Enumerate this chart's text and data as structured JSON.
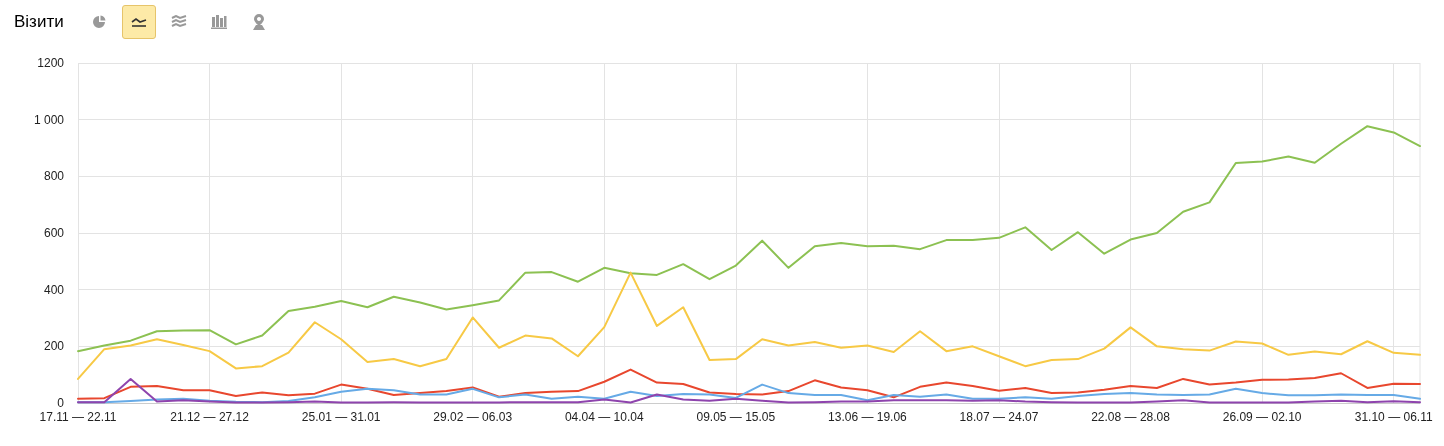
{
  "chart_data": {
    "type": "line",
    "title": "Візити",
    "categories": [
      "17.11 — 22.11",
      null,
      null,
      null,
      null,
      "21.12 — 27.12",
      null,
      null,
      null,
      null,
      "25.01 — 31.01",
      null,
      null,
      null,
      null,
      "29.02 — 06.03",
      null,
      null,
      null,
      null,
      "04.04 — 10.04",
      null,
      null,
      null,
      null,
      "09.05 — 15.05",
      null,
      null,
      null,
      null,
      "13.06 — 19.06",
      null,
      null,
      null,
      null,
      "18.07 — 24.07",
      null,
      null,
      null,
      null,
      "22.08 — 28.08",
      null,
      null,
      null,
      null,
      "26.09 — 02.10",
      null,
      null,
      null,
      null,
      "31.10 — 06.11",
      null
    ],
    "series": [
      {
        "color": "#8cc152",
        "values": [
          183,
          203,
          220,
          253,
          256,
          257,
          207,
          238,
          325,
          340,
          360,
          338,
          375,
          355,
          330,
          345,
          362,
          460,
          462,
          428,
          477,
          458,
          452,
          490,
          437,
          485,
          573,
          477,
          553,
          565,
          553,
          555,
          543,
          575,
          575,
          583,
          620,
          540,
          603,
          527,
          577,
          600,
          675,
          708,
          847,
          852,
          870,
          848,
          915,
          977,
          955,
          907
        ]
      },
      {
        "color": "#f7c945",
        "values": [
          85,
          190,
          203,
          225,
          205,
          183,
          122,
          130,
          178,
          285,
          225,
          145,
          155,
          130,
          155,
          302,
          195,
          238,
          228,
          165,
          268,
          460,
          272,
          338,
          152,
          155,
          225,
          203,
          215,
          195,
          203,
          180,
          253,
          183,
          200,
          165,
          130,
          152,
          155,
          192,
          267,
          200,
          190,
          185,
          217,
          210,
          170,
          182,
          172,
          218,
          177,
          170
        ]
      },
      {
        "color": "#e8472e",
        "values": [
          15,
          17,
          57,
          60,
          45,
          45,
          25,
          37,
          27,
          33,
          65,
          50,
          28,
          35,
          42,
          55,
          22,
          35,
          40,
          42,
          75,
          118,
          72,
          67,
          37,
          32,
          30,
          42,
          80,
          55,
          45,
          20,
          57,
          72,
          60,
          43,
          53,
          35,
          37,
          47,
          60,
          53,
          85,
          65,
          72,
          82,
          83,
          88,
          105,
          53,
          68,
          67
        ]
      },
      {
        "color": "#66aae6",
        "values": [
          3,
          3,
          7,
          12,
          15,
          8,
          4,
          3,
          7,
          20,
          40,
          50,
          45,
          30,
          30,
          50,
          20,
          30,
          15,
          22,
          15,
          40,
          25,
          32,
          30,
          18,
          65,
          35,
          28,
          28,
          10,
          28,
          22,
          30,
          15,
          15,
          20,
          15,
          25,
          32,
          35,
          30,
          28,
          30,
          50,
          35,
          27,
          27,
          30,
          28,
          28,
          15
        ]
      },
      {
        "color": "#8e44ad",
        "values": [
          3,
          3,
          85,
          5,
          10,
          5,
          2,
          2,
          3,
          5,
          2,
          2,
          3,
          2,
          2,
          2,
          2,
          3,
          3,
          3,
          12,
          2,
          30,
          12,
          8,
          15,
          8,
          2,
          3,
          5,
          5,
          10,
          10,
          10,
          8,
          10,
          5,
          3,
          2,
          2,
          2,
          5,
          10,
          2,
          2,
          2,
          2,
          5,
          8,
          3,
          6,
          3
        ]
      }
    ],
    "ylim": [
      0,
      1200
    ],
    "yticks": [
      0,
      200,
      400,
      600,
      800,
      {
        "value": 1000,
        "label": "1 000"
      },
      1200
    ],
    "grid": true,
    "marker": "none",
    "line_style": "solid"
  }
}
